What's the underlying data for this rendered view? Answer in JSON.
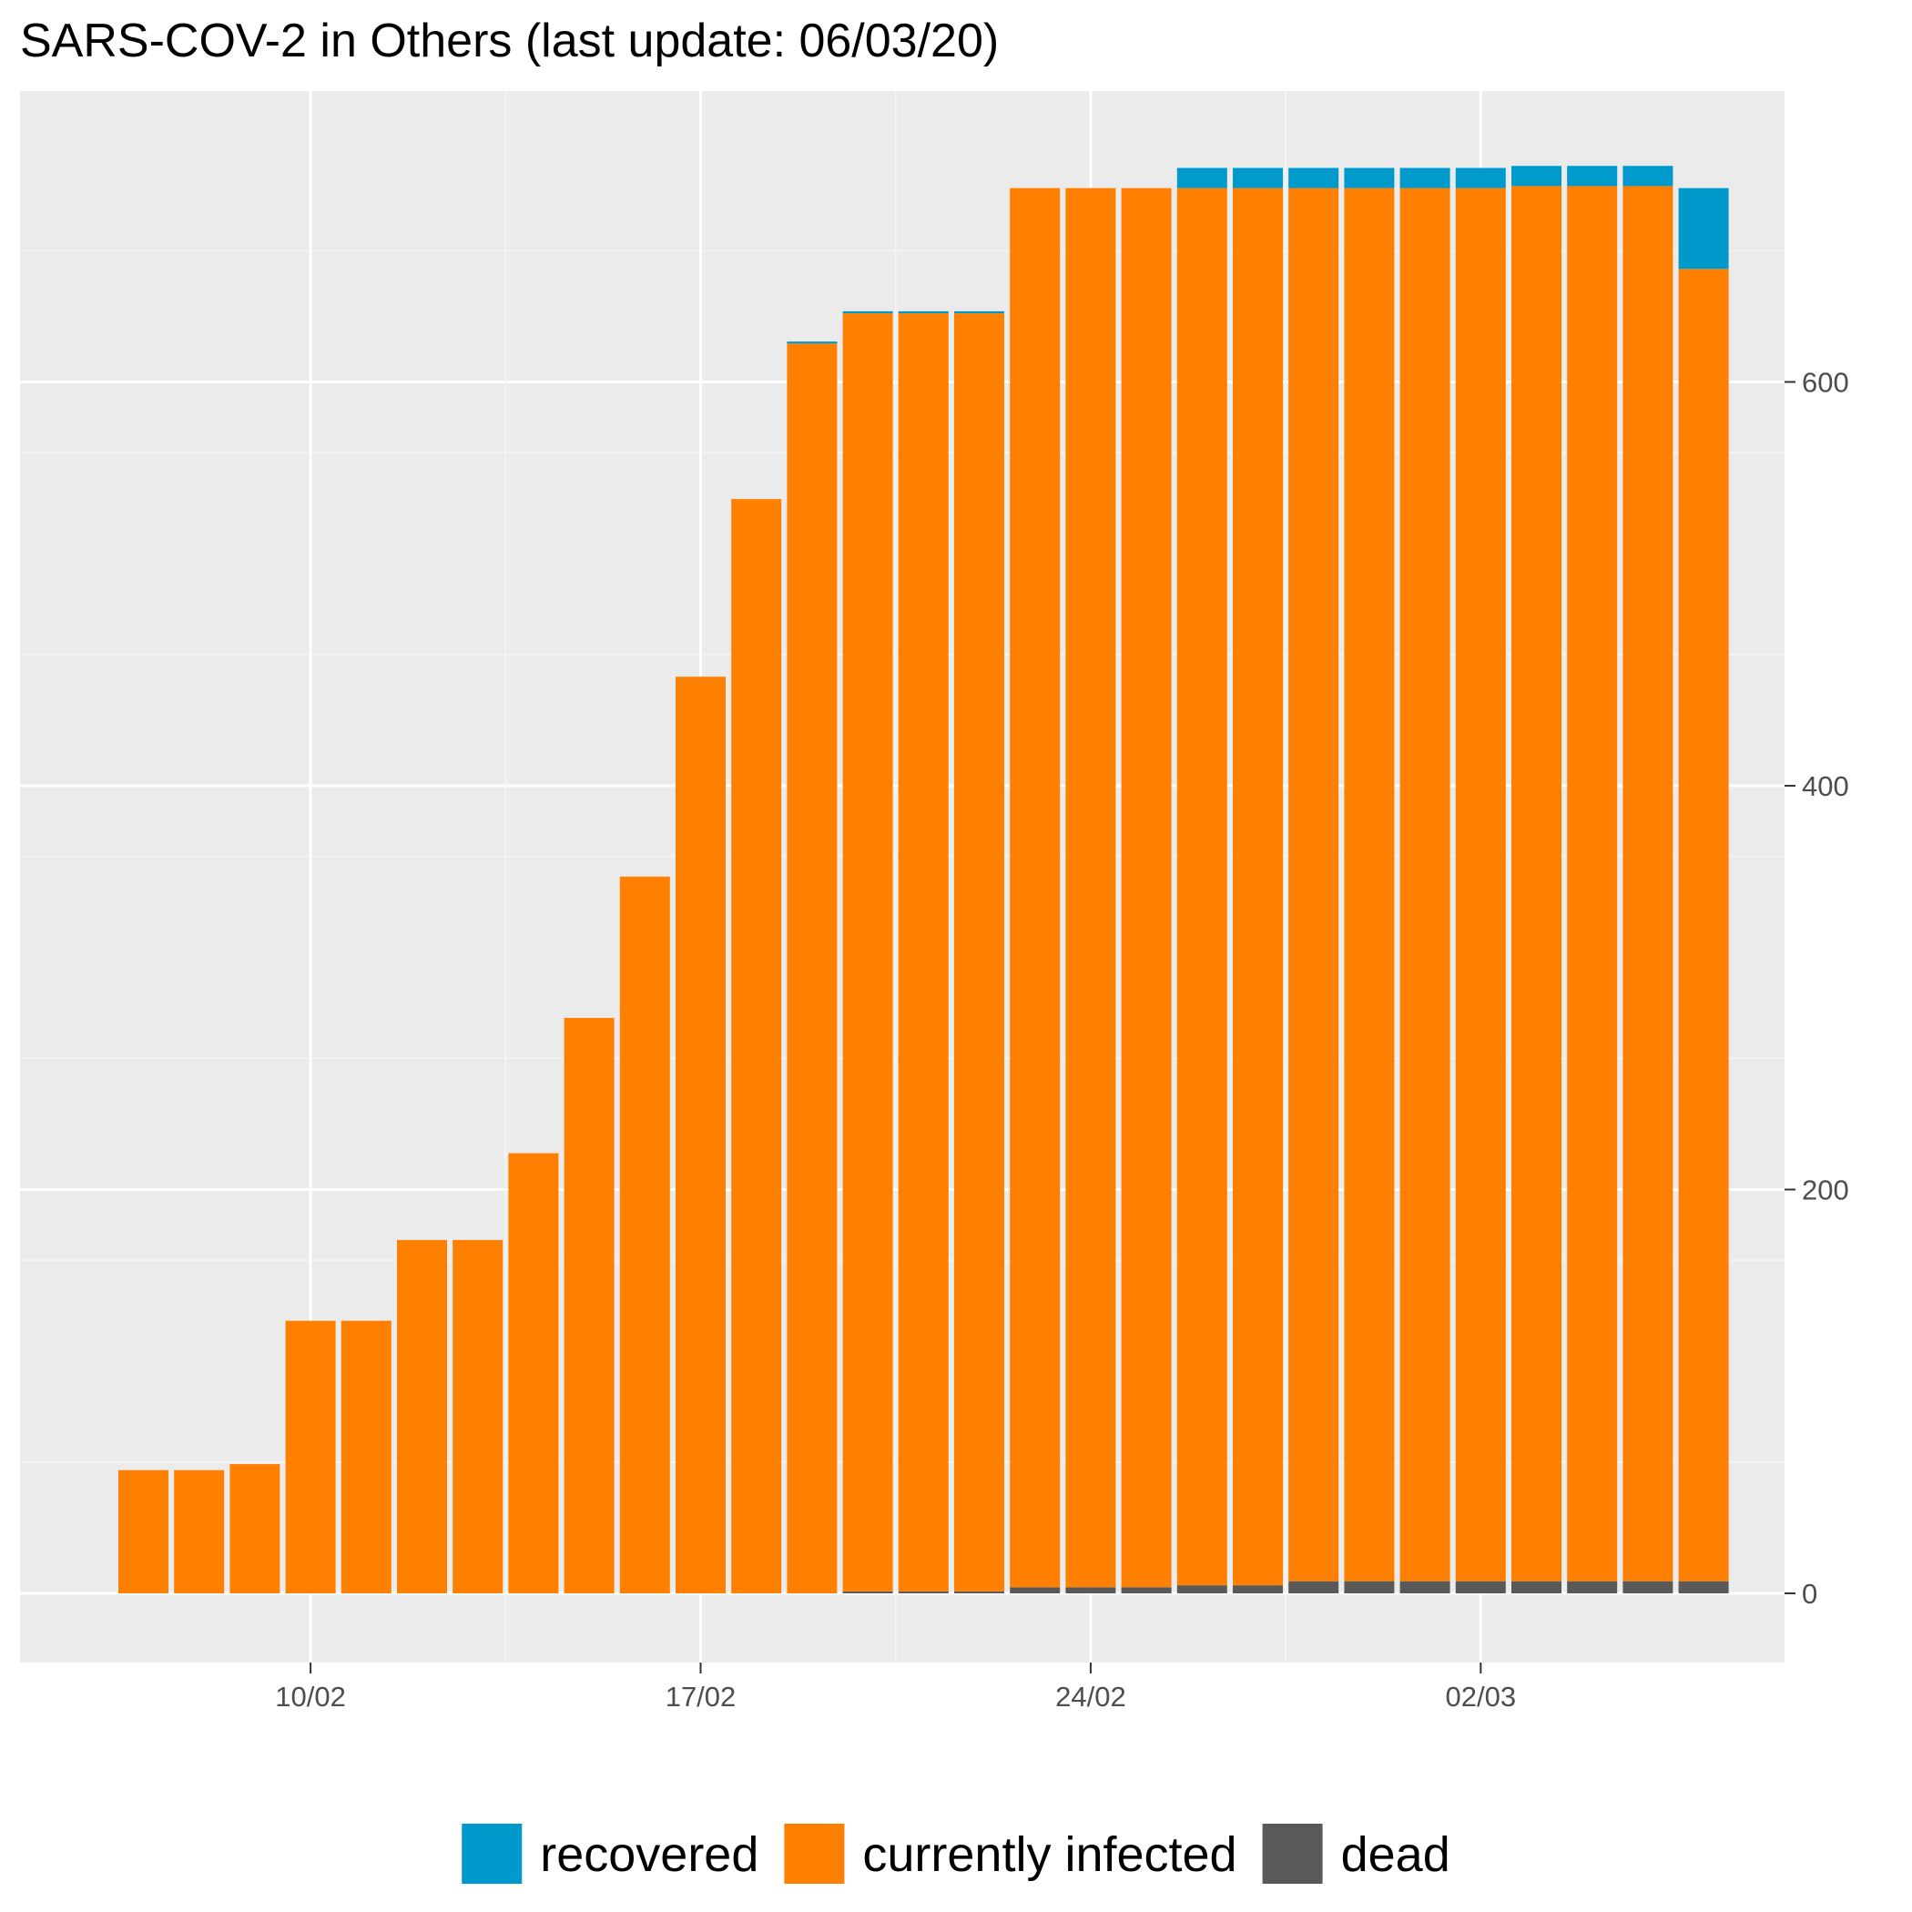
{
  "chart_data": {
    "type": "bar",
    "stacked": true,
    "title": "SARS-COV-2 in Others (last update: 06/03/20)",
    "xlabel": "",
    "ylabel": "",
    "ylim": [
      -35,
      743
    ],
    "y_ticks": [
      0,
      200,
      400,
      600
    ],
    "y_axis_position": "right",
    "grid": true,
    "legend_position": "bottom",
    "x_dates": [
      "07/02",
      "08/02",
      "09/02",
      "10/02",
      "11/02",
      "12/02",
      "13/02",
      "14/02",
      "15/02",
      "16/02",
      "17/02",
      "18/02",
      "19/02",
      "20/02",
      "21/02",
      "22/02",
      "23/02",
      "24/02",
      "25/02",
      "26/02",
      "27/02",
      "28/02",
      "29/02",
      "01/03",
      "02/03",
      "03/03",
      "04/03",
      "05/03",
      "06/03"
    ],
    "x_tick_labels": [
      {
        "date": "10/02",
        "label": "10/02"
      },
      {
        "date": "17/02",
        "label": "17/02"
      },
      {
        "date": "24/02",
        "label": "24/02"
      },
      {
        "date": "02/03",
        "label": "02/03"
      }
    ],
    "series": [
      {
        "name": "dead",
        "color": "#595959",
        "values": [
          0,
          0,
          0,
          0,
          0,
          0,
          0,
          0,
          0,
          0,
          0,
          0,
          0,
          1,
          1,
          1,
          3,
          3,
          3,
          4,
          4,
          6,
          6,
          6,
          6,
          6,
          6,
          6,
          6
        ]
      },
      {
        "name": "currently infected",
        "color": "#ff8000",
        "values": [
          61,
          61,
          64,
          135,
          135,
          175,
          175,
          218,
          285,
          355,
          454,
          542,
          619,
          633,
          633,
          633,
          693,
          693,
          693,
          692,
          692,
          690,
          690,
          690,
          690,
          691,
          691,
          691,
          650
        ]
      },
      {
        "name": "recovered",
        "color": "#0099cc",
        "values": [
          0,
          0,
          0,
          0,
          0,
          0,
          0,
          0,
          0,
          0,
          0,
          0,
          1,
          1,
          1,
          1,
          0,
          0,
          0,
          10,
          10,
          10,
          10,
          10,
          10,
          10,
          10,
          10,
          40
        ]
      }
    ]
  }
}
